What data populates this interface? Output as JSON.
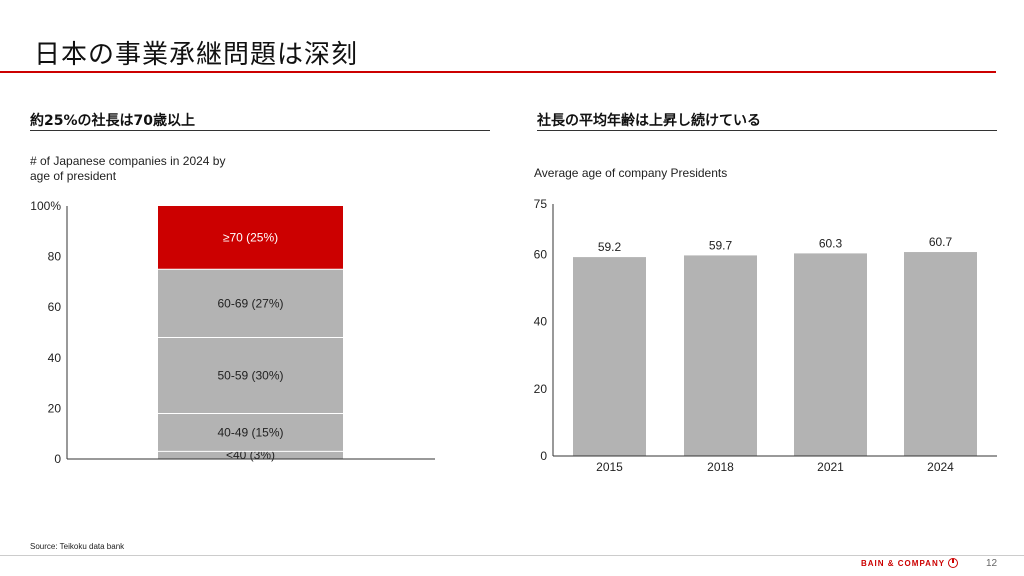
{
  "title": "日本の事業承継問題は深刻",
  "left": {
    "heading": "約25%の社長は70歳以上",
    "subtitle_line1": "# of Japanese companies in 2024 by",
    "subtitle_line2": "age of president"
  },
  "right": {
    "heading": "社長の平均年齢は上昇し続けている",
    "subtitle": "Average age of company Presidents"
  },
  "chart_data": [
    {
      "type": "bar",
      "stacked": true,
      "ylim": [
        0,
        100
      ],
      "yticks": [
        "0",
        "20",
        "40",
        "60",
        "80",
        "100%"
      ],
      "segments": [
        {
          "label": "<40 (3%)",
          "value": 3,
          "color": "#b3b3b3"
        },
        {
          "label": "40-49 (15%)",
          "value": 15,
          "color": "#b3b3b3"
        },
        {
          "label": "50-59 (30%)",
          "value": 30,
          "color": "#b3b3b3"
        },
        {
          "label": "60-69 (27%)",
          "value": 27,
          "color": "#b3b3b3"
        },
        {
          "label": "≥70 (25%)",
          "value": 25,
          "color": "#cc0000"
        }
      ]
    },
    {
      "type": "bar",
      "ylim": [
        0,
        75
      ],
      "yticks": [
        "0",
        "20",
        "40",
        "60",
        "75"
      ],
      "categories": [
        "2015",
        "2018",
        "2021",
        "2024"
      ],
      "values": [
        59.2,
        59.7,
        60.3,
        60.7
      ],
      "labels": [
        "59.2",
        "59.7",
        "60.3",
        "60.7"
      ],
      "color": "#b3b3b3"
    }
  ],
  "footer": {
    "source": "Source: Teikoku data bank",
    "brand": "BAIN & COMPANY",
    "page": "12"
  },
  "colors": {
    "accent": "#cc0000",
    "bar": "#b3b3b3"
  }
}
